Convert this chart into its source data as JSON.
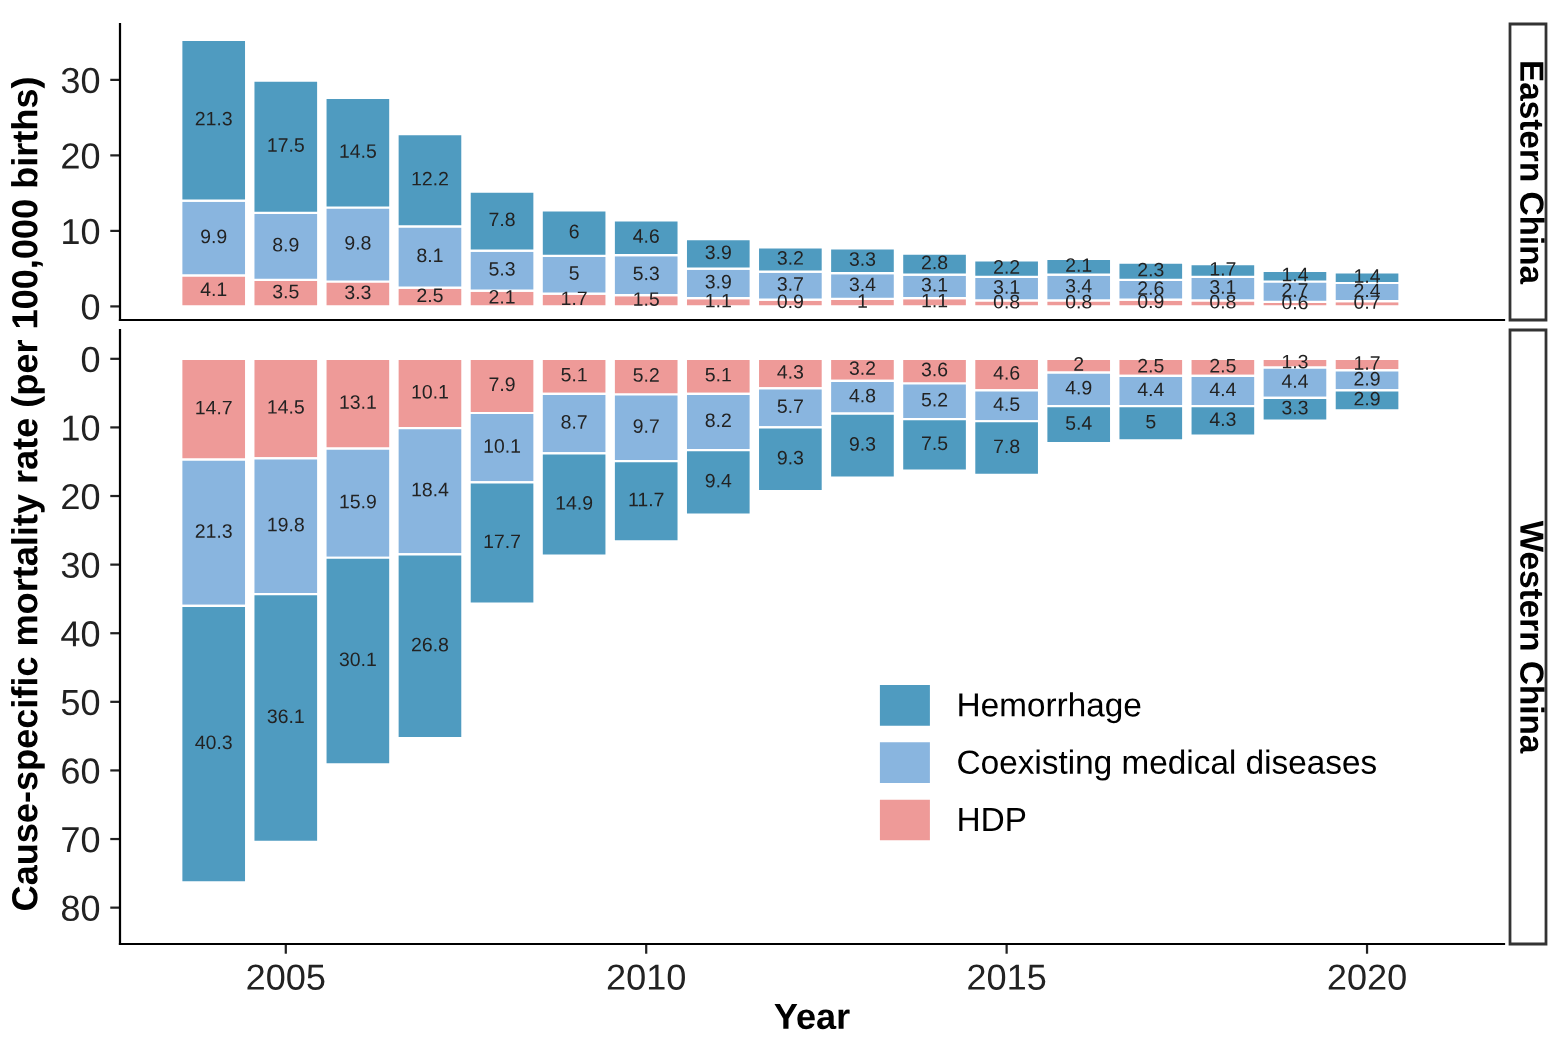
{
  "chart_data": [
    {
      "type": "bar",
      "title": "Eastern China",
      "ylabel": "Cause-specific mortality rate (per 100,000 births)",
      "stacked": true,
      "data_labels": true,
      "grid": false,
      "legend": false,
      "tick_labels": "y",
      "x": [
        2004,
        2005,
        2006,
        2007,
        2008,
        2009,
        2010,
        2011,
        2012,
        2013,
        2014,
        2015,
        2016,
        2017,
        2018,
        2019,
        2020
      ],
      "xlim": [
        2002.7,
        2021.9
      ],
      "xticks": [
        2005,
        2010,
        2015,
        2020
      ],
      "ylim": [
        -1.8,
        37.4
      ],
      "yticks": [
        0,
        10,
        20,
        30
      ],
      "series": [
        {
          "color": "#ee9a98",
          "values": [
            4.1,
            3.5,
            3.3,
            2.5,
            2.1,
            1.7,
            1.5,
            1.1,
            0.9,
            1,
            1.1,
            0.8,
            0.8,
            0.9,
            0.8,
            0.6,
            0.7
          ]
        },
        {
          "color": "#89b5df",
          "values": [
            9.9,
            8.9,
            9.8,
            8.1,
            5.3,
            5,
            5.3,
            3.9,
            3.7,
            3.4,
            3.1,
            3.1,
            3.4,
            2.6,
            3.1,
            2.7,
            2.4
          ]
        },
        {
          "color": "#4f9bc0",
          "values": [
            21.3,
            17.5,
            14.5,
            12.2,
            7.8,
            6,
            4.6,
            3.9,
            3.2,
            3.3,
            2.8,
            2.2,
            2.1,
            2.3,
            1.7,
            1.4,
            1.4
          ]
        }
      ]
    },
    {
      "type": "bar",
      "title": "Western China",
      "xlabel": "Year",
      "stacked": true,
      "data_labels": true,
      "grid": false,
      "legend": "bottom right",
      "x": [
        2004,
        2005,
        2006,
        2007,
        2008,
        2009,
        2010,
        2011,
        2012,
        2013,
        2014,
        2015,
        2016,
        2017,
        2018,
        2019,
        2020
      ],
      "xlim": [
        2002.7,
        2021.9
      ],
      "xticks": [
        2005,
        2010,
        2015,
        2020
      ],
      "ylim": [
        85.3,
        -4.2
      ],
      "yticks": [
        0,
        10,
        20,
        30,
        40,
        50,
        60,
        70,
        80
      ],
      "series": [
        {
          "name": "HDP",
          "color": "#ee9a98",
          "values": [
            14.7,
            14.5,
            13.1,
            10.1,
            7.9,
            5.1,
            5.2,
            5.1,
            4.3,
            3.2,
            3.6,
            4.6,
            2,
            2.5,
            2.5,
            1.3,
            1.7
          ]
        },
        {
          "name": "Coexisting medical diseases",
          "color": "#89b5df",
          "values": [
            21.3,
            19.8,
            15.9,
            18.4,
            10.1,
            8.7,
            9.7,
            8.2,
            5.7,
            4.8,
            5.2,
            4.5,
            4.9,
            4.4,
            4.4,
            4.4,
            2.9
          ]
        },
        {
          "name": "Hemorrhage",
          "color": "#4f9bc0",
          "values": [
            40.3,
            36.1,
            30.1,
            26.8,
            17.7,
            14.9,
            11.7,
            9.4,
            9.3,
            9.3,
            7.5,
            7.8,
            5.4,
            5,
            4.3,
            3.3,
            2.9
          ]
        }
      ]
    }
  ]
}
